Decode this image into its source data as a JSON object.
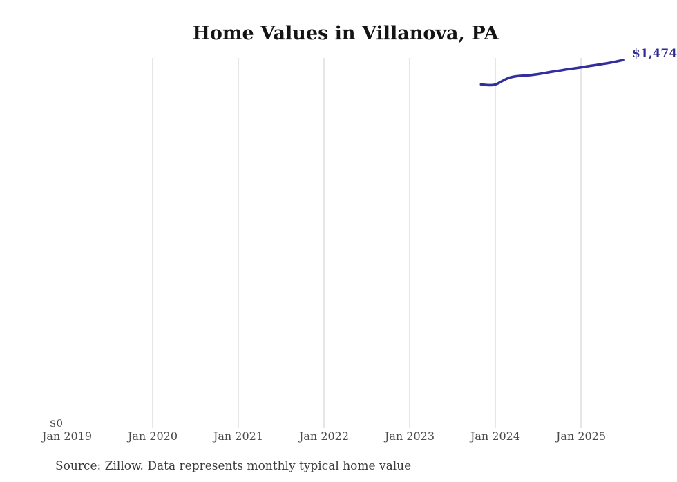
{
  "title": "Home Values in Villanova, PA",
  "source_note": "Source: Zillow. Data represents monthly typical home value",
  "chart_data": {
    "type": "line",
    "title": "Home Values in Villanova, PA",
    "xlabel": "",
    "ylabel": "",
    "x_tick_labels": [
      "Jan 2019",
      "Jan 2020",
      "Jan 2021",
      "Jan 2022",
      "Jan 2023",
      "Jan 2024",
      "Jan 2025"
    ],
    "y_zero_label": "$0",
    "end_label": "$1,474,",
    "ylim": [
      0,
      1482000
    ],
    "grid": "vertical-only",
    "legend": "none",
    "line_color": "#322e9e",
    "end_label_color": "#2d2a90",
    "gridline_color": "#cecece",
    "series": [
      {
        "name": "Monthly typical home value",
        "points": [
          {
            "month": "Nov 2023",
            "value": 1376000
          },
          {
            "month": "Dec 2023",
            "value": 1372000
          },
          {
            "month": "Jan 2024",
            "value": 1374000
          },
          {
            "month": "Feb 2024",
            "value": 1390000
          },
          {
            "month": "Mar 2024",
            "value": 1404000
          },
          {
            "month": "Apr 2024",
            "value": 1409000
          },
          {
            "month": "May 2024",
            "value": 1411000
          },
          {
            "month": "Jun 2024",
            "value": 1413000
          },
          {
            "month": "Jul 2024",
            "value": 1417000
          },
          {
            "month": "Aug 2024",
            "value": 1422000
          },
          {
            "month": "Sep 2024",
            "value": 1427000
          },
          {
            "month": "Oct 2024",
            "value": 1431000
          },
          {
            "month": "Nov 2024",
            "value": 1436000
          },
          {
            "month": "Dec 2024",
            "value": 1440000
          },
          {
            "month": "Jan 2025",
            "value": 1444000
          },
          {
            "month": "Feb 2025",
            "value": 1449000
          },
          {
            "month": "Mar 2025",
            "value": 1453000
          },
          {
            "month": "Apr 2025",
            "value": 1458000
          },
          {
            "month": "May 2025",
            "value": 1462000
          },
          {
            "month": "Jun 2025",
            "value": 1468000
          },
          {
            "month": "Jul 2025",
            "value": 1474000
          }
        ]
      }
    ]
  }
}
